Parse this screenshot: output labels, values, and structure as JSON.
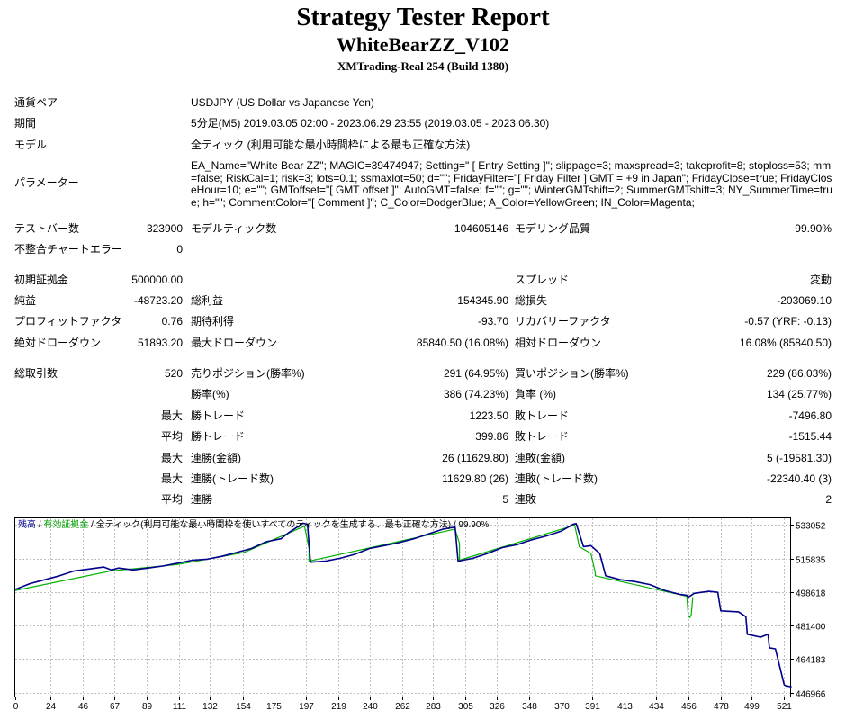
{
  "header": {
    "title": "Strategy Tester Report",
    "subtitle": "WhiteBearZZ_V102",
    "server": "XMTrading-Real 254 (Build 1380)"
  },
  "settings": {
    "symbol_label": "通貨ペア",
    "symbol_value": "USDJPY (US Dollar vs Japanese Yen)",
    "period_label": "期間",
    "period_value": "5分足(M5) 2019.03.05 02:00 - 2023.06.29 23:55 (2019.03.05 - 2023.06.30)",
    "model_label": "モデル",
    "model_value": "全ティック (利用可能な最小時間枠による最も正確な方法)",
    "params_label": "パラメーター",
    "params_value": "EA_Name=\"White Bear ZZ\"; MAGIC=39474947; Setting=\" [ Entry Setting ]\"; slippage=3; maxspread=3; takeprofit=8; stoploss=53; mm=false; RiskCal=1; risk=3; lots=0.1; ssmaxlot=50; d=\"\"; FridayFilter=\"[ Friday Filter ] GMT = +9 in Japan\"; FridayClose=true; FridayCloseHour=10; e=\"\"; GMToffset=\"[ GMT offset ]\"; AutoGMT=false; f=\"\"; g=\"\"; WinterGMTshift=2; SummerGMTshift=3; NY_SummerTime=true; h=\"\"; CommentColor=\"[ Comment ]\"; C_Color=DodgerBlue; A_Color=YellowGreen; IN_Color=Magenta;"
  },
  "quality": {
    "bars_label": "テストバー数",
    "bars_value": "323900",
    "ticks_label": "モデルティック数",
    "ticks_value": "104605146",
    "modeling_label": "モデリング品質",
    "modeling_value": "99.90%",
    "mismatch_label": "不整合チャートエラー",
    "mismatch_value": "0"
  },
  "results": {
    "deposit_label": "初期証拠金",
    "deposit_value": "500000.00",
    "spread_label": "スプレッド",
    "spread_value": "変動",
    "net_label": "純益",
    "net_value": "-48723.20",
    "gross_profit_label": "総利益",
    "gross_profit_value": "154345.90",
    "gross_loss_label": "総損失",
    "gross_loss_value": "-203069.10",
    "pf_label": "プロフィットファクタ",
    "pf_value": "0.76",
    "expected_label": "期待利得",
    "expected_value": "-93.70",
    "recovery_label": "リカバリーファクタ",
    "recovery_value": "-0.57 (YRF: -0.13)",
    "abs_dd_label": "絶対ドローダウン",
    "abs_dd_value": "51893.20",
    "max_dd_label": "最大ドローダウン",
    "max_dd_value": "85840.50 (16.08%)",
    "rel_dd_label": "相対ドローダウン",
    "rel_dd_value": "16.08% (85840.50)"
  },
  "trades": {
    "total_label": "総取引数",
    "total_value": "520",
    "short_label": "売りポジション(勝率%)",
    "short_value": "291 (64.95%)",
    "long_label": "買いポジション(勝率%)",
    "long_value": "229 (86.03%)",
    "win_rate_label": "勝率(%)",
    "win_rate_value": "386 (74.23%)",
    "loss_rate_label": "負率 (%)",
    "loss_rate_value": "134 (25.77%)",
    "max_label": "最大",
    "avg_label": "平均",
    "largest_win_label": "勝トレード",
    "largest_win_value": "1223.50",
    "largest_loss_label": "敗トレード",
    "largest_loss_value": "-7496.80",
    "avg_win_label": "勝トレード",
    "avg_win_value": "399.86",
    "avg_loss_label": "敗トレード",
    "avg_loss_value": "-1515.44",
    "max_consec_wins_label": "連勝(金額)",
    "max_consec_wins_value": "26 (11629.80)",
    "max_consec_losses_label": "連敗(金額)",
    "max_consec_losses_value": "5 (-19581.30)",
    "max_consec_profit_label": "連勝(トレード数)",
    "max_consec_profit_value": "11629.80 (26)",
    "max_consec_loss_label": "連敗(トレード数)",
    "max_consec_loss_value": "-22340.40 (3)",
    "avg_consec_wins_label": "連勝",
    "avg_consec_wins_value": "5",
    "avg_consec_losses_label": "連敗",
    "avg_consec_losses_value": "2"
  },
  "chart_data": {
    "type": "line",
    "legend": {
      "balance": "残高",
      "sep1": " / ",
      "equity": "有効証拠金",
      "sep2": " / ",
      "model": "全ティック(利用可能な最小時間枠を使いすべてのティックを生成する、最も正確な方法)",
      "sep3": " / ",
      "quality": "99.90%"
    },
    "colors": {
      "balance": "#00008b",
      "equity": "#00b200",
      "grid": "#c0c0c0"
    },
    "x_ticks": [
      "0",
      "24",
      "46",
      "67",
      "89",
      "111",
      "132",
      "154",
      "175",
      "197",
      "219",
      "240",
      "262",
      "283",
      "305",
      "326",
      "348",
      "370",
      "391",
      "413",
      "434",
      "456",
      "478",
      "499",
      "521"
    ],
    "y_ticks": [
      "533052",
      "515835",
      "498618",
      "481400",
      "464183",
      "446966"
    ],
    "xlim": [
      0,
      525
    ],
    "ylim": [
      445000,
      536500
    ],
    "series": [
      {
        "key": "balance",
        "x": [
          0,
          10,
          20,
          30,
          40,
          50,
          60,
          65,
          70,
          80,
          90,
          100,
          110,
          120,
          130,
          140,
          150,
          160,
          170,
          180,
          185,
          190,
          195,
          198,
          200,
          210,
          220,
          230,
          240,
          250,
          260,
          270,
          280,
          290,
          298,
          300,
          310,
          320,
          330,
          340,
          350,
          360,
          370,
          378,
          380,
          385,
          390,
          396,
          400,
          410,
          420,
          430,
          440,
          450,
          455,
          456,
          457,
          460,
          470,
          476,
          478,
          490,
          495,
          496,
          505,
          510,
          511,
          515,
          521,
          522,
          526
        ],
        "y": [
          500000,
          503000,
          505000,
          507000,
          509500,
          510500,
          511500,
          510000,
          511000,
          510000,
          511000,
          512000,
          513500,
          515000,
          515500,
          517000,
          519000,
          521000,
          524500,
          526000,
          529000,
          531500,
          534000,
          533500,
          514000,
          514500,
          516000,
          518000,
          521000,
          522500,
          524000,
          526000,
          528500,
          531000,
          532000,
          514500,
          516000,
          518500,
          521500,
          523000,
          525500,
          527500,
          530000,
          533500,
          533800,
          522000,
          522500,
          518500,
          507000,
          505000,
          504000,
          502500,
          499500,
          497500,
          497000,
          496000,
          496500,
          498000,
          499000,
          498500,
          489000,
          488500,
          486000,
          477000,
          475500,
          477000,
          470000,
          469500,
          451000,
          450500,
          450000
        ]
      },
      {
        "key": "equity",
        "x": [
          0,
          65,
          110,
          155,
          196,
          199,
          199,
          298,
          301,
          301,
          379,
          382,
          382,
          390,
          393,
          393,
          455,
          456,
          457,
          458,
          459
        ],
        "y": [
          499500,
          509500,
          512800,
          519000,
          532500,
          521000,
          514500,
          531000,
          523500,
          515000,
          533000,
          522500,
          522000,
          518500,
          508500,
          507000,
          496500,
          486500,
          485500,
          487000,
          496000
        ]
      }
    ]
  }
}
